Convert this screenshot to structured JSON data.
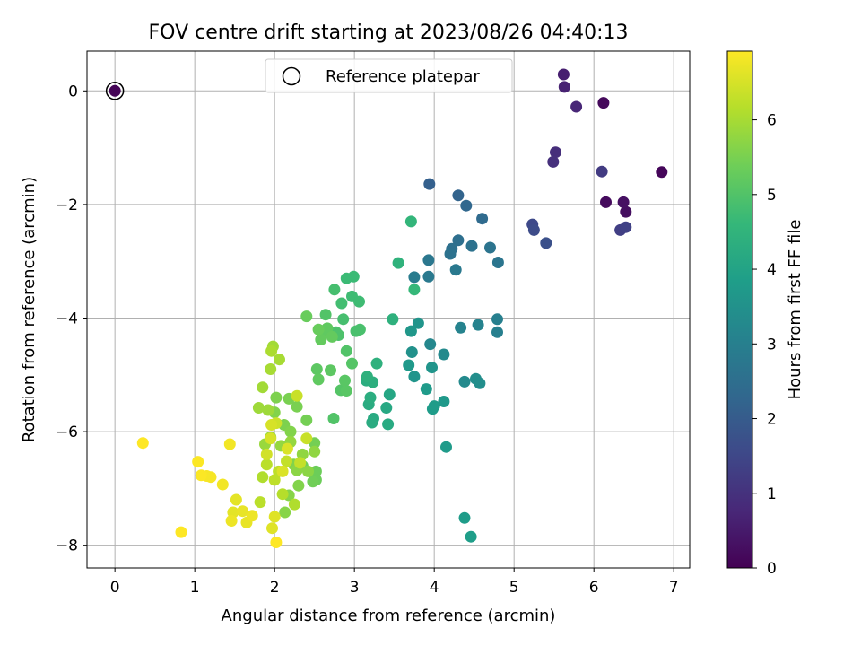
{
  "chart_data": {
    "type": "scatter",
    "title": "FOV centre drift starting at 2023/08/26 04:40:13",
    "xlabel": "Angular distance from reference (arcmin)",
    "ylabel": "Rotation from reference (arcmin)",
    "xlim": [
      -0.35,
      7.2
    ],
    "ylim": [
      -8.4,
      0.7
    ],
    "xticks": [
      0,
      1,
      2,
      3,
      4,
      5,
      6,
      7
    ],
    "yticks": [
      0,
      -2,
      -4,
      -6,
      -8
    ],
    "xtick_labels": [
      "0",
      "1",
      "2",
      "3",
      "4",
      "5",
      "6",
      "7"
    ],
    "ytick_labels": [
      "0",
      "−2",
      "−4",
      "−6",
      "−8"
    ],
    "grid": true,
    "legend": {
      "position": "top-center",
      "entries": [
        {
          "label": "Reference platepar",
          "marker": "open-circle"
        }
      ]
    },
    "colorbar": {
      "label": "Hours from first FF file",
      "min": 0,
      "max": 6.92,
      "ticks": [
        0,
        1,
        2,
        3,
        4,
        5,
        6
      ],
      "tick_labels": [
        "0",
        "1",
        "2",
        "3",
        "4",
        "5",
        "6"
      ],
      "colormap": "viridis"
    },
    "colormap_stops": [
      "#440154",
      "#482878",
      "#3e4989",
      "#31688e",
      "#26828e",
      "#1f9e89",
      "#35b779",
      "#6ece58",
      "#b5de2b",
      "#fde725"
    ],
    "reference_point": {
      "x": 0,
      "y": 0,
      "t": 0
    },
    "series": [
      {
        "points": [
          [
            0.0,
            0.0,
            0.05
          ],
          [
            6.85,
            -1.43,
            0.1
          ],
          [
            6.12,
            -0.21,
            0.15
          ],
          [
            6.15,
            -1.96,
            0.2
          ],
          [
            6.4,
            -2.13,
            0.25
          ],
          [
            6.37,
            -1.96,
            0.3
          ],
          [
            5.62,
            0.29,
            0.6
          ],
          [
            5.63,
            0.07,
            0.65
          ],
          [
            5.78,
            -0.28,
            0.75
          ],
          [
            5.52,
            -1.08,
            0.9
          ],
          [
            5.49,
            -1.25,
            0.95
          ],
          [
            6.1,
            -1.42,
            1.2
          ],
          [
            6.33,
            -2.45,
            1.3
          ],
          [
            6.4,
            -2.4,
            1.35
          ],
          [
            5.23,
            -2.35,
            1.55
          ],
          [
            5.25,
            -2.45,
            1.6
          ],
          [
            5.4,
            -2.68,
            1.7
          ],
          [
            3.94,
            -1.64,
            2.1
          ],
          [
            4.3,
            -1.84,
            2.2
          ],
          [
            4.4,
            -2.02,
            2.3
          ],
          [
            4.6,
            -2.25,
            2.4
          ],
          [
            4.3,
            -2.63,
            2.5
          ],
          [
            4.22,
            -2.78,
            2.55
          ],
          [
            4.2,
            -2.87,
            2.6
          ],
          [
            4.47,
            -2.73,
            2.6
          ],
          [
            4.7,
            -2.76,
            2.65
          ],
          [
            4.8,
            -3.02,
            2.7
          ],
          [
            3.93,
            -2.98,
            2.75
          ],
          [
            4.27,
            -3.15,
            2.8
          ],
          [
            3.93,
            -3.27,
            2.8
          ],
          [
            3.75,
            -3.28,
            2.9
          ],
          [
            4.79,
            -4.02,
            3.0
          ],
          [
            4.79,
            -4.25,
            3.0
          ],
          [
            4.33,
            -4.17,
            3.1
          ],
          [
            3.95,
            -4.46,
            3.2
          ],
          [
            4.55,
            -4.12,
            3.1
          ],
          [
            4.12,
            -4.64,
            3.3
          ],
          [
            4.38,
            -5.12,
            3.3
          ],
          [
            4.52,
            -5.07,
            3.4
          ],
          [
            4.57,
            -5.15,
            3.4
          ],
          [
            3.97,
            -4.87,
            3.6
          ],
          [
            3.72,
            -4.6,
            3.5
          ],
          [
            3.75,
            -5.03,
            3.6
          ],
          [
            3.68,
            -4.83,
            3.7
          ],
          [
            3.71,
            -4.23,
            3.65
          ],
          [
            3.8,
            -4.09,
            3.6
          ],
          [
            4.12,
            -5.47,
            3.7
          ],
          [
            3.98,
            -5.6,
            3.8
          ],
          [
            4.0,
            -5.55,
            3.8
          ],
          [
            3.9,
            -5.25,
            3.75
          ],
          [
            4.15,
            -6.27,
            3.75
          ],
          [
            4.38,
            -7.52,
            3.8
          ],
          [
            4.46,
            -7.85,
            3.85
          ],
          [
            3.44,
            -5.35,
            4.1
          ],
          [
            3.4,
            -5.58,
            4.15
          ],
          [
            3.42,
            -5.87,
            4.2
          ],
          [
            3.24,
            -5.77,
            4.2
          ],
          [
            3.22,
            -5.84,
            4.25
          ],
          [
            3.18,
            -5.52,
            4.25
          ],
          [
            3.2,
            -5.4,
            4.3
          ],
          [
            3.15,
            -5.1,
            4.3
          ],
          [
            3.23,
            -5.13,
            4.35
          ],
          [
            3.28,
            -4.8,
            4.4
          ],
          [
            3.16,
            -5.03,
            4.4
          ],
          [
            3.48,
            -4.02,
            4.4
          ],
          [
            3.55,
            -3.03,
            4.45
          ],
          [
            3.71,
            -2.3,
            4.55
          ],
          [
            3.75,
            -3.5,
            4.6
          ],
          [
            2.99,
            -3.27,
            4.7
          ],
          [
            2.9,
            -3.3,
            4.7
          ],
          [
            2.97,
            -3.62,
            4.75
          ],
          [
            3.06,
            -3.71,
            4.75
          ],
          [
            2.84,
            -3.74,
            4.8
          ],
          [
            2.75,
            -3.5,
            4.85
          ],
          [
            2.86,
            -4.02,
            4.85
          ],
          [
            3.02,
            -4.23,
            4.9
          ],
          [
            3.07,
            -4.2,
            4.9
          ],
          [
            2.77,
            -4.25,
            4.95
          ],
          [
            2.8,
            -4.3,
            4.95
          ],
          [
            2.64,
            -3.94,
            5.0
          ],
          [
            2.9,
            -4.58,
            5.0
          ],
          [
            2.97,
            -4.8,
            5.05
          ],
          [
            2.83,
            -5.27,
            5.05
          ],
          [
            2.9,
            -5.28,
            5.1
          ],
          [
            2.88,
            -5.1,
            5.1
          ],
          [
            2.7,
            -4.92,
            5.15
          ],
          [
            2.53,
            -4.9,
            5.15
          ],
          [
            2.55,
            -5.08,
            5.2
          ],
          [
            2.6,
            -4.28,
            5.2
          ],
          [
            2.66,
            -4.18,
            5.2
          ],
          [
            2.58,
            -4.38,
            5.25
          ],
          [
            2.72,
            -4.33,
            5.25
          ],
          [
            2.55,
            -4.2,
            5.3
          ],
          [
            2.4,
            -3.97,
            5.3
          ],
          [
            2.74,
            -5.77,
            5.0
          ],
          [
            2.52,
            -6.7,
            5.35
          ],
          [
            2.52,
            -6.85,
            5.35
          ],
          [
            2.48,
            -6.88,
            5.4
          ],
          [
            2.35,
            -6.6,
            5.4
          ],
          [
            2.5,
            -6.2,
            5.45
          ],
          [
            2.4,
            -5.8,
            5.45
          ],
          [
            2.28,
            -5.56,
            5.5
          ],
          [
            2.18,
            -5.42,
            5.5
          ],
          [
            2.12,
            -5.88,
            5.55
          ],
          [
            2.02,
            -5.4,
            5.55
          ],
          [
            2.0,
            -5.66,
            5.6
          ],
          [
            2.2,
            -6.0,
            5.6
          ],
          [
            2.24,
            -6.58,
            5.6
          ],
          [
            2.3,
            -6.95,
            5.6
          ],
          [
            2.18,
            -7.12,
            5.65
          ],
          [
            2.13,
            -7.42,
            5.65
          ],
          [
            2.28,
            -6.68,
            5.7
          ],
          [
            2.42,
            -6.7,
            5.7
          ],
          [
            2.5,
            -6.35,
            5.75
          ],
          [
            2.35,
            -6.4,
            5.75
          ],
          [
            2.2,
            -6.18,
            5.8
          ],
          [
            2.08,
            -6.25,
            5.8
          ],
          [
            1.95,
            -6.1,
            5.85
          ],
          [
            1.88,
            -6.22,
            5.85
          ],
          [
            1.92,
            -5.62,
            5.9
          ],
          [
            1.8,
            -5.58,
            5.9
          ],
          [
            1.85,
            -5.22,
            5.95
          ],
          [
            1.98,
            -4.5,
            5.95
          ],
          [
            1.95,
            -4.9,
            6.0
          ],
          [
            2.06,
            -4.73,
            6.0
          ],
          [
            1.96,
            -4.58,
            6.05
          ],
          [
            1.85,
            -6.8,
            6.1
          ],
          [
            2.25,
            -7.28,
            6.1
          ],
          [
            2.1,
            -7.1,
            6.15
          ],
          [
            1.82,
            -7.24,
            6.2
          ],
          [
            1.9,
            -6.58,
            6.2
          ],
          [
            2.0,
            -6.85,
            6.25
          ],
          [
            2.05,
            -6.7,
            6.25
          ],
          [
            2.15,
            -6.52,
            6.3
          ],
          [
            2.32,
            -6.55,
            6.3
          ],
          [
            2.4,
            -6.12,
            6.35
          ],
          [
            2.28,
            -5.37,
            6.35
          ],
          [
            2.02,
            -5.85,
            6.4
          ],
          [
            1.9,
            -6.4,
            6.45
          ],
          [
            1.95,
            -6.12,
            6.5
          ],
          [
            1.96,
            -5.88,
            6.5
          ],
          [
            2.16,
            -6.3,
            6.55
          ],
          [
            2.1,
            -6.7,
            6.55
          ],
          [
            2.0,
            -7.5,
            6.6
          ],
          [
            1.97,
            -7.7,
            6.6
          ],
          [
            1.52,
            -7.2,
            6.65
          ],
          [
            1.48,
            -7.42,
            6.65
          ],
          [
            1.6,
            -7.4,
            6.7
          ],
          [
            1.65,
            -7.6,
            6.7
          ],
          [
            1.72,
            -7.48,
            6.75
          ],
          [
            1.46,
            -7.57,
            6.75
          ],
          [
            1.44,
            -6.22,
            6.8
          ],
          [
            1.35,
            -6.93,
            6.8
          ],
          [
            1.2,
            -6.8,
            6.85
          ],
          [
            1.15,
            -6.78,
            6.85
          ],
          [
            1.08,
            -6.77,
            6.9
          ],
          [
            1.04,
            -6.53,
            6.9
          ],
          [
            0.35,
            -6.2,
            6.92
          ],
          [
            0.83,
            -7.77,
            6.92
          ],
          [
            2.02,
            -7.95,
            6.92
          ]
        ]
      }
    ]
  }
}
